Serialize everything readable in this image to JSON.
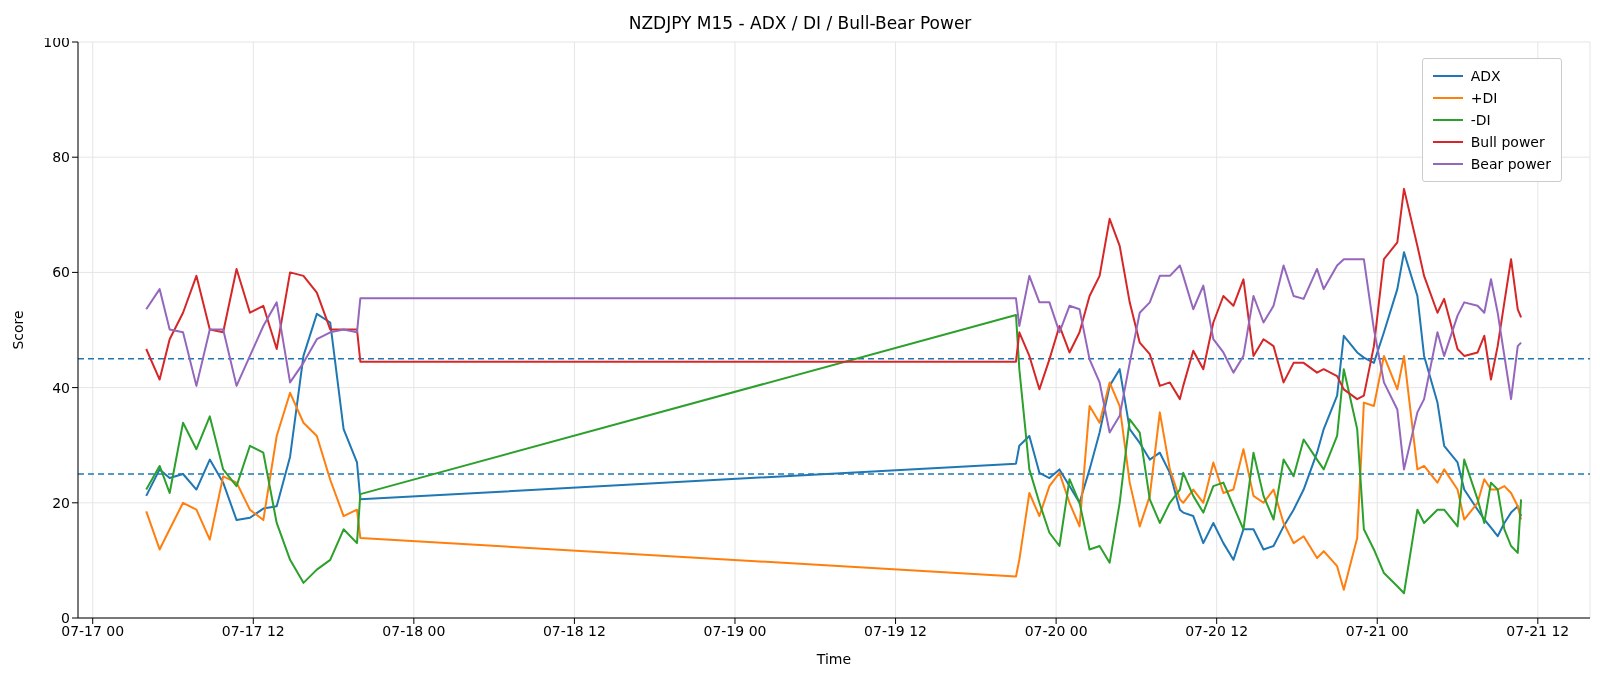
{
  "chart_data": {
    "type": "line",
    "title": "NZDJPY M15 - ADX / DI / Bull-Bear Power",
    "xlabel": "Time",
    "ylabel": "Score",
    "x": [
      "--07-17T04:00",
      "--07-17T05:00",
      "--07-17T05:45",
      "--07-17T06:45",
      "--07-17T07:45",
      "--07-17T08:45",
      "--07-17T09:45",
      "--07-17T10:45",
      "--07-17T11:45",
      "--07-17T12:45",
      "--07-17T13:45",
      "--07-17T14:45",
      "--07-17T15:45",
      "--07-17T16:45",
      "--07-17T17:45",
      "--07-17T18:45",
      "--07-17T19:45",
      "--07-17T20:00",
      "--07-19T21:00",
      "--07-19T21:15",
      "--07-19T22:00",
      "--07-19T22:45",
      "--07-19T23:30",
      "--07-20T00:15",
      "--07-20T01:00",
      "--07-20T01:45",
      "--07-20T02:30",
      "--07-20T03:15",
      "--07-20T04:00",
      "--07-20T04:45",
      "--07-20T05:30",
      "--07-20T06:15",
      "--07-20T07:00",
      "--07-20T07:45",
      "--07-20T08:30",
      "--07-20T09:15",
      "--07-20T09:30",
      "--07-20T10:15",
      "--07-20T11:00",
      "--07-20T11:45",
      "--07-20T12:30",
      "--07-20T13:15",
      "--07-20T14:00",
      "--07-20T14:45",
      "--07-20T15:30",
      "--07-20T16:15",
      "--07-20T17:00",
      "--07-20T17:45",
      "--07-20T18:30",
      "--07-20T19:30",
      "--07-20T20:00",
      "--07-20T21:00",
      "--07-20T21:30",
      "--07-20T22:30",
      "--07-20T23:00",
      "--07-20T23:45",
      "--07-21T00:30",
      "--07-21T01:30",
      "--07-21T02:00",
      "--07-21T03:00",
      "--07-21T03:30",
      "--07-21T04:30",
      "--07-21T05:00",
      "--07-21T06:00",
      "--07-21T06:30",
      "--07-21T07:30",
      "--07-21T08:00",
      "--07-21T08:30",
      "--07-21T09:00",
      "--07-21T09:30",
      "--07-21T10:00",
      "--07-21T10:30",
      "--07-21T10:45"
    ],
    "series": [
      {
        "name": "ADX",
        "color": "#1f77b4",
        "values": [
          21.2,
          25.8,
          24.3,
          25,
          22.3,
          27.5,
          23.5,
          17,
          17.4,
          19,
          19.4,
          28,
          45.5,
          52.8,
          51.3,
          32.8,
          27,
          20.6,
          26.8,
          29.9,
          31.6,
          25.2,
          24.3,
          25.8,
          22.9,
          20,
          25.8,
          32.2,
          40.3,
          43.2,
          32.8,
          30.4,
          27.5,
          28.7,
          25.2,
          18.8,
          18.3,
          17.7,
          13,
          16.5,
          13,
          10.1,
          15.4,
          15.4,
          11.9,
          12.5,
          15.9,
          18.8,
          22.3,
          28.7,
          32.8,
          38.6,
          49,
          46.1,
          45.2,
          44.3,
          49.6,
          57.1,
          63.5,
          55.9,
          45.5,
          37.4,
          29.9,
          27,
          22.3,
          18.8,
          17.1,
          15.7,
          14.2,
          16.5,
          18.3,
          19.4,
          17.7
        ]
      },
      {
        "name": "+DI",
        "color": "#ff7f0e",
        "values": [
          18.5,
          11.9,
          15.4,
          20,
          18.8,
          13.6,
          24.6,
          23.5,
          18.8,
          17,
          31.6,
          39.1,
          33.9,
          31.6,
          24,
          17.7,
          18.8,
          13.9,
          7.2,
          10.1,
          21.7,
          17.7,
          22.9,
          25.2,
          20,
          15.9,
          36.8,
          33.9,
          40.9,
          36.8,
          23.5,
          15.9,
          21.2,
          35.7,
          25.8,
          20.6,
          20,
          22.3,
          20,
          27,
          21.7,
          22.3,
          29.3,
          21.2,
          20,
          22.3,
          16.5,
          13,
          14.2,
          10.4,
          11.6,
          9,
          4.9,
          13.9,
          37.4,
          36.8,
          45.5,
          39.7,
          45.5,
          25.8,
          26.4,
          23.5,
          25.8,
          22.3,
          17.1,
          20,
          24.1,
          22.3,
          22.3,
          22.9,
          21.7,
          19.4,
          17.1
        ]
      },
      {
        "name": "-DI",
        "color": "#2ca02c",
        "values": [
          22.3,
          26.4,
          21.7,
          33.9,
          29.3,
          35,
          25.8,
          22.9,
          29.9,
          28.7,
          16.5,
          10.1,
          6.1,
          8.4,
          10.1,
          15.4,
          13,
          21.5,
          52.6,
          43.2,
          25.8,
          20,
          14.8,
          12.5,
          24.1,
          20,
          11.9,
          12.5,
          9.6,
          20,
          34.5,
          32.2,
          20.6,
          16.5,
          20,
          22.3,
          25.2,
          21.2,
          18.3,
          22.9,
          23.5,
          19.4,
          15.4,
          28.7,
          21.2,
          17.1,
          27.5,
          24.6,
          31,
          27.5,
          25.8,
          31.6,
          43.2,
          32.8,
          15.4,
          11.9,
          7.8,
          5.5,
          4.3,
          18.8,
          16.5,
          18.8,
          18.8,
          15.9,
          27.5,
          20.6,
          16.5,
          23.5,
          22.3,
          15.4,
          12.5,
          11.3,
          20.6
        ]
      },
      {
        "name": "Bull power",
        "color": "#d62728",
        "values": [
          46.7,
          41.4,
          48.4,
          53,
          59.4,
          50.1,
          49.6,
          60.6,
          53,
          54.2,
          46.7,
          60,
          59.4,
          56.5,
          50.1,
          50.1,
          50.1,
          44.5,
          44.5,
          49.6,
          45.5,
          39.7,
          44.9,
          50.7,
          46.1,
          49.6,
          55.9,
          59.4,
          69.3,
          64.6,
          54.8,
          47.8,
          45.8,
          40.3,
          40.9,
          38,
          40.3,
          46.4,
          43.2,
          51.3,
          55.9,
          54.2,
          58.8,
          45.5,
          48.4,
          47.2,
          40.9,
          44.3,
          44.3,
          42.6,
          43.2,
          42,
          39.7,
          38,
          38.6,
          47.2,
          62.3,
          65.2,
          74.5,
          64.6,
          59.4,
          53,
          55.4,
          46.7,
          45.5,
          46.1,
          49,
          41.4,
          47.2,
          54.8,
          62.3,
          53.6,
          52.2
        ]
      },
      {
        "name": "Bear power",
        "color": "#9467bd",
        "values": [
          53.6,
          57.1,
          50.1,
          49.6,
          40.3,
          50.1,
          50.1,
          40.3,
          45.5,
          50.7,
          54.8,
          40.9,
          44.3,
          48.4,
          49.6,
          50.1,
          49.6,
          55.5,
          55.5,
          50.7,
          59.4,
          54.8,
          54.8,
          49.6,
          54.2,
          53.6,
          44.9,
          40.9,
          32.2,
          35.1,
          44.3,
          53,
          54.8,
          59.4,
          59.4,
          61.2,
          59.4,
          53.6,
          57.7,
          48.4,
          46.1,
          42.6,
          45.5,
          55.9,
          51.3,
          54.2,
          61.2,
          55.9,
          55.4,
          60.6,
          57.1,
          61.2,
          62.3,
          62.3,
          62.3,
          50.1,
          40.9,
          36.2,
          25.8,
          35.7,
          38,
          49.6,
          45.5,
          52.5,
          54.8,
          54.2,
          53,
          58.8,
          53,
          45.5,
          38,
          47.2,
          47.8
        ]
      }
    ],
    "xlim": [
      "--07-16T22:54",
      "--07-21T15:54"
    ],
    "xticks": [
      {
        "value": "--07-17T00:00",
        "label": "07-17 00"
      },
      {
        "value": "--07-17T12:00",
        "label": "07-17 12"
      },
      {
        "value": "--07-18T00:00",
        "label": "07-18 00"
      },
      {
        "value": "--07-18T12:00",
        "label": "07-18 12"
      },
      {
        "value": "--07-19T00:00",
        "label": "07-19 00"
      },
      {
        "value": "--07-19T12:00",
        "label": "07-19 12"
      },
      {
        "value": "--07-20T00:00",
        "label": "07-20 00"
      },
      {
        "value": "--07-20T12:00",
        "label": "07-20 12"
      },
      {
        "value": "--07-21T00:00",
        "label": "07-21 00"
      },
      {
        "value": "--07-21T12:00",
        "label": "07-21 12"
      }
    ],
    "ylim": [
      0,
      100
    ],
    "yticks": [
      0,
      20,
      40,
      60,
      80,
      100
    ],
    "ref_lines": [
      {
        "axis": "y",
        "value": 45,
        "color": "#1f77b4",
        "line_style": "dashed"
      },
      {
        "axis": "y",
        "value": 25,
        "color": "#1f77b4",
        "line_style": "dashed"
      }
    ],
    "grid": true,
    "legend": "top right",
    "marker": "none",
    "line_style": "solid"
  }
}
